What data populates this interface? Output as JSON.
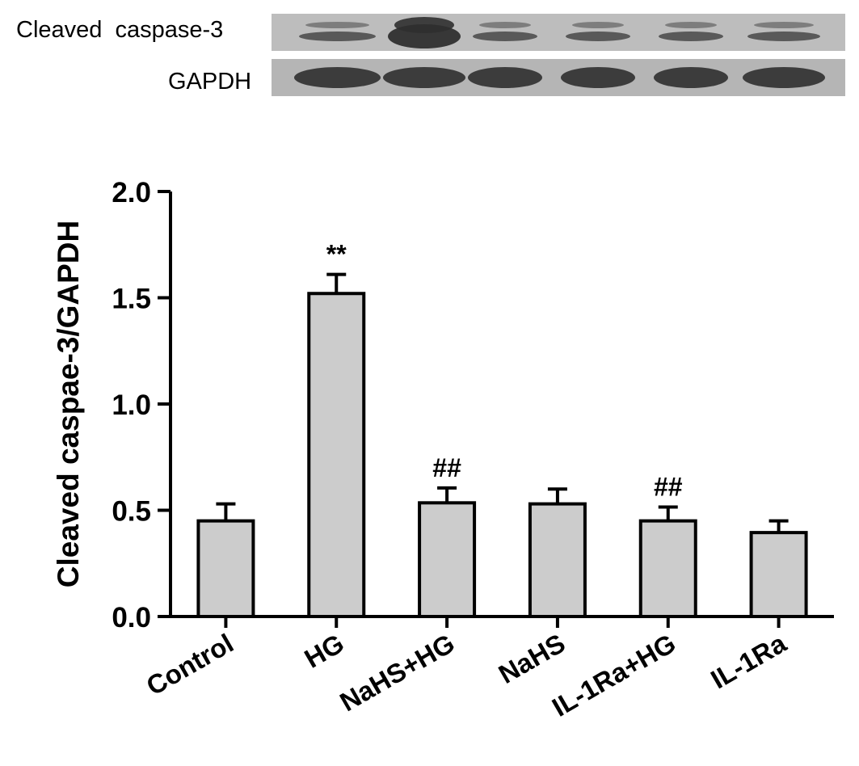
{
  "blot": {
    "rows": [
      {
        "label": "Cleaved  caspase-3"
      },
      {
        "label": "GAPDH"
      }
    ]
  },
  "colors": {
    "bar_fill": "#cccccc",
    "bar_stroke": "#000000",
    "blot_background": "#bdbdbd",
    "band": "#2f2f2f"
  },
  "chart_data": {
    "type": "bar",
    "categories": [
      "Control",
      "HG",
      "NaHS+HG",
      "NaHS",
      "IL-1Ra+HG",
      "IL-1Ra"
    ],
    "values": [
      0.45,
      1.52,
      0.535,
      0.53,
      0.45,
      0.395
    ],
    "errors": [
      0.08,
      0.09,
      0.07,
      0.07,
      0.065,
      0.055
    ],
    "annotations": [
      "",
      "**",
      "##",
      "",
      "##",
      ""
    ],
    "ylabel": "Cleaved caspae-3/GAPDH",
    "xlabel": "",
    "ylim": [
      0,
      2.0
    ],
    "yticks": [
      "0.0",
      "0.5",
      "1.0",
      "1.5",
      "2.0"
    ],
    "grid": false
  }
}
